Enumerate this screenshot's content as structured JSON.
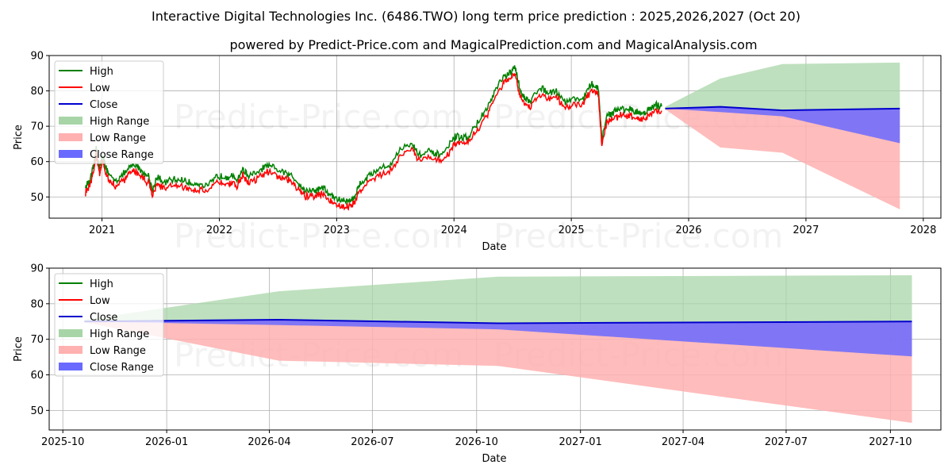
{
  "title": "Interactive Digital Technologies Inc. (6486.TWO) long term price prediction : 2025,2026,2027 (Oct 20)",
  "subtitle": "powered by Predict-Price.com and MagicalPrediction.com and MagicalAnalysis.com",
  "watermark": "Predict-Price.com",
  "colors": {
    "high": "#008000",
    "low": "#ff0000",
    "close": "#0000cc",
    "high_range": "#a8d5a8",
    "low_range": "#ffb0b0",
    "close_range": "#6a6aff"
  },
  "legend": [
    "High",
    "Low",
    "Close",
    "High Range",
    "Low Range",
    "Close Range"
  ],
  "chart_data": [
    {
      "type": "line",
      "id": "history",
      "xlabel": "Date",
      "ylabel": "Price",
      "xlim": [
        2020.55,
        2028.15
      ],
      "ylim": [
        44,
        90
      ],
      "xticks": [
        2021,
        2022,
        2023,
        2024,
        2025,
        2026,
        2027,
        2028
      ],
      "xtick_labels": [
        "2021",
        "2022",
        "2023",
        "2024",
        "2025",
        "2026",
        "2027",
        "2028"
      ],
      "yticks": [
        50,
        60,
        70,
        80,
        90
      ],
      "ytick_labels": [
        "50",
        "60",
        "70",
        "80",
        "90"
      ],
      "grid": true,
      "legend_position": "upper-left",
      "history_close": [
        [
          2020.86,
          52
        ],
        [
          2020.9,
          54
        ],
        [
          2020.93,
          58
        ],
        [
          2020.95,
          63
        ],
        [
          2020.98,
          57
        ],
        [
          2021.0,
          61
        ],
        [
          2021.03,
          58
        ],
        [
          2021.06,
          55
        ],
        [
          2021.12,
          54
        ],
        [
          2021.2,
          56
        ],
        [
          2021.25,
          58
        ],
        [
          2021.3,
          58
        ],
        [
          2021.35,
          56
        ],
        [
          2021.4,
          55
        ],
        [
          2021.43,
          51
        ],
        [
          2021.47,
          55
        ],
        [
          2021.52,
          53
        ],
        [
          2021.6,
          54
        ],
        [
          2021.68,
          54
        ],
        [
          2021.75,
          53
        ],
        [
          2021.82,
          53
        ],
        [
          2021.9,
          52
        ],
        [
          2021.98,
          55
        ],
        [
          2022.05,
          55
        ],
        [
          2022.1,
          55
        ],
        [
          2022.15,
          54
        ],
        [
          2022.2,
          57
        ],
        [
          2022.25,
          55
        ],
        [
          2022.33,
          56
        ],
        [
          2022.4,
          58
        ],
        [
          2022.48,
          57
        ],
        [
          2022.55,
          56
        ],
        [
          2022.62,
          55
        ],
        [
          2022.68,
          53
        ],
        [
          2022.73,
          51
        ],
        [
          2022.78,
          51
        ],
        [
          2022.83,
          51
        ],
        [
          2022.88,
          52
        ],
        [
          2022.93,
          50
        ],
        [
          2022.98,
          49
        ],
        [
          2023.05,
          48
        ],
        [
          2023.1,
          48
        ],
        [
          2023.15,
          49
        ],
        [
          2023.2,
          53
        ],
        [
          2023.27,
          55
        ],
        [
          2023.35,
          57
        ],
        [
          2023.45,
          58
        ],
        [
          2023.55,
          63
        ],
        [
          2023.65,
          64
        ],
        [
          2023.7,
          61
        ],
        [
          2023.78,
          62
        ],
        [
          2023.85,
          61
        ],
        [
          2023.93,
          62
        ],
        [
          2024.0,
          66
        ],
        [
          2024.05,
          66
        ],
        [
          2024.12,
          66
        ],
        [
          2024.2,
          70
        ],
        [
          2024.28,
          74
        ],
        [
          2024.35,
          79
        ],
        [
          2024.42,
          83
        ],
        [
          2024.48,
          84
        ],
        [
          2024.52,
          86
        ],
        [
          2024.56,
          80
        ],
        [
          2024.6,
          77
        ],
        [
          2024.65,
          76
        ],
        [
          2024.72,
          80
        ],
        [
          2024.8,
          79
        ],
        [
          2024.88,
          79
        ],
        [
          2024.95,
          76
        ],
        [
          2025.02,
          77
        ],
        [
          2025.1,
          77
        ],
        [
          2025.17,
          81
        ],
        [
          2025.23,
          80
        ],
        [
          2025.26,
          65
        ],
        [
          2025.3,
          72
        ],
        [
          2025.35,
          73
        ],
        [
          2025.42,
          74
        ],
        [
          2025.5,
          74
        ],
        [
          2025.56,
          73
        ],
        [
          2025.62,
          73
        ],
        [
          2025.67,
          74
        ],
        [
          2025.72,
          75
        ],
        [
          2025.77,
          75
        ]
      ],
      "forecast": {
        "x": [
          2025.8,
          2026.27,
          2026.8,
          2027.8
        ],
        "high": [
          75.5,
          83.5,
          87.6,
          88.0
        ],
        "low": [
          74.8,
          64.0,
          62.5,
          46.5
        ],
        "close": [
          75.0,
          75.5,
          74.5,
          75.0
        ],
        "close_range_low": [
          75.0,
          74.0,
          72.8,
          65.2
        ]
      }
    },
    {
      "type": "area",
      "id": "forecast-zoom",
      "xlabel": "Date",
      "ylabel": "Price",
      "xlim": [
        2025.715,
        2027.87
      ],
      "ylim": [
        44.5,
        90
      ],
      "xticks": [
        2025.748,
        2025.999,
        2026.247,
        2026.496,
        2026.748,
        2026.999,
        2027.247,
        2027.496,
        2027.748
      ],
      "xtick_labels": [
        "2025-10",
        "2026-01",
        "2026-04",
        "2026-07",
        "2026-10",
        "2027-01",
        "2027-04",
        "2027-07",
        "2027-10"
      ],
      "yticks": [
        50,
        60,
        70,
        80,
        90
      ],
      "ytick_labels": [
        "50",
        "60",
        "70",
        "80",
        "90"
      ],
      "grid": true,
      "legend_position": "upper-left",
      "forecast": {
        "x": [
          2025.8,
          2026.27,
          2026.8,
          2027.8
        ],
        "high": [
          75.5,
          83.5,
          87.6,
          88.0
        ],
        "low": [
          74.8,
          64.0,
          62.5,
          46.5
        ],
        "close": [
          75.0,
          75.5,
          74.5,
          75.0
        ],
        "close_range_low": [
          75.0,
          74.0,
          72.8,
          65.2
        ]
      }
    }
  ]
}
